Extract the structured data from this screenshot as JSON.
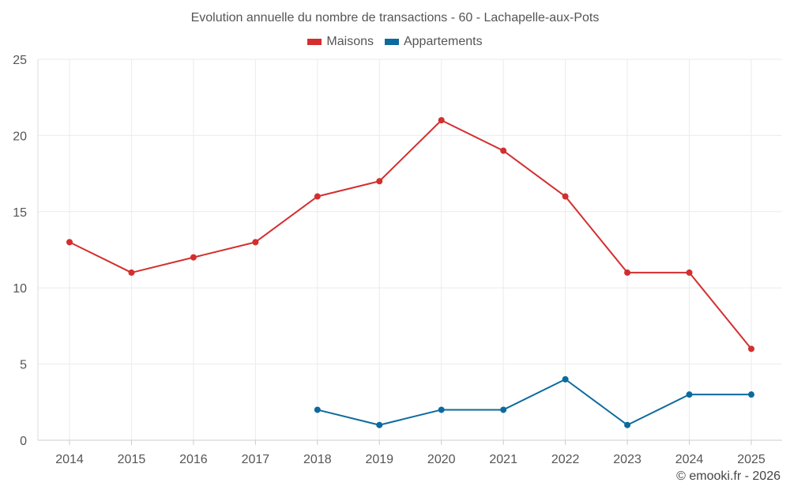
{
  "chart_data": {
    "type": "line",
    "title": "Evolution annuelle du nombre de transactions - 60 - Lachapelle-aux-Pots",
    "categories": [
      "2014",
      "2015",
      "2016",
      "2017",
      "2018",
      "2019",
      "2020",
      "2021",
      "2022",
      "2023",
      "2024",
      "2025"
    ],
    "series": [
      {
        "name": "Maisons",
        "color": "#d32f2f",
        "values": [
          13,
          11,
          12,
          13,
          16,
          17,
          21,
          19,
          16,
          11,
          11,
          6
        ]
      },
      {
        "name": "Appartements",
        "color": "#0d6a9e",
        "values": [
          null,
          null,
          null,
          null,
          2,
          1,
          2,
          2,
          4,
          1,
          3,
          3
        ]
      }
    ],
    "yticks": [
      "0",
      "5",
      "10",
      "15",
      "20",
      "25"
    ],
    "ylim": [
      0,
      25
    ],
    "xlabel": "",
    "ylabel": "",
    "grid": true,
    "legend": "top-center"
  },
  "credit": "© emooki.fr - 2026"
}
